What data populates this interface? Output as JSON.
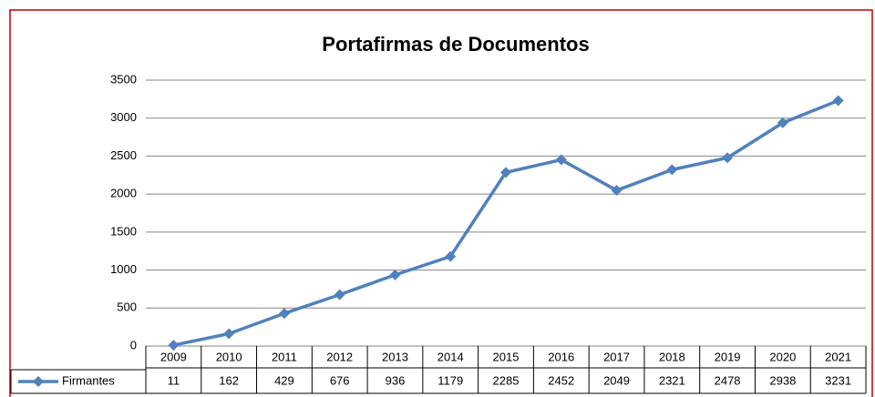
{
  "chart_data": {
    "type": "line",
    "title": "Portafirmas de Documentos",
    "categories": [
      "2009",
      "2010",
      "2011",
      "2012",
      "2013",
      "2014",
      "2015",
      "2016",
      "2017",
      "2018",
      "2019",
      "2020",
      "2021"
    ],
    "series": [
      {
        "name": "Firmantes",
        "color": "#4f81bd",
        "values": [
          11,
          162,
          429,
          676,
          936,
          1179,
          2285,
          2452,
          2049,
          2321,
          2478,
          2938,
          3231
        ]
      }
    ],
    "ylim": [
      0,
      3500
    ],
    "yticks": [
      0,
      500,
      1000,
      1500,
      2000,
      2500,
      3000,
      3500
    ],
    "grid": true,
    "data_table": true
  }
}
